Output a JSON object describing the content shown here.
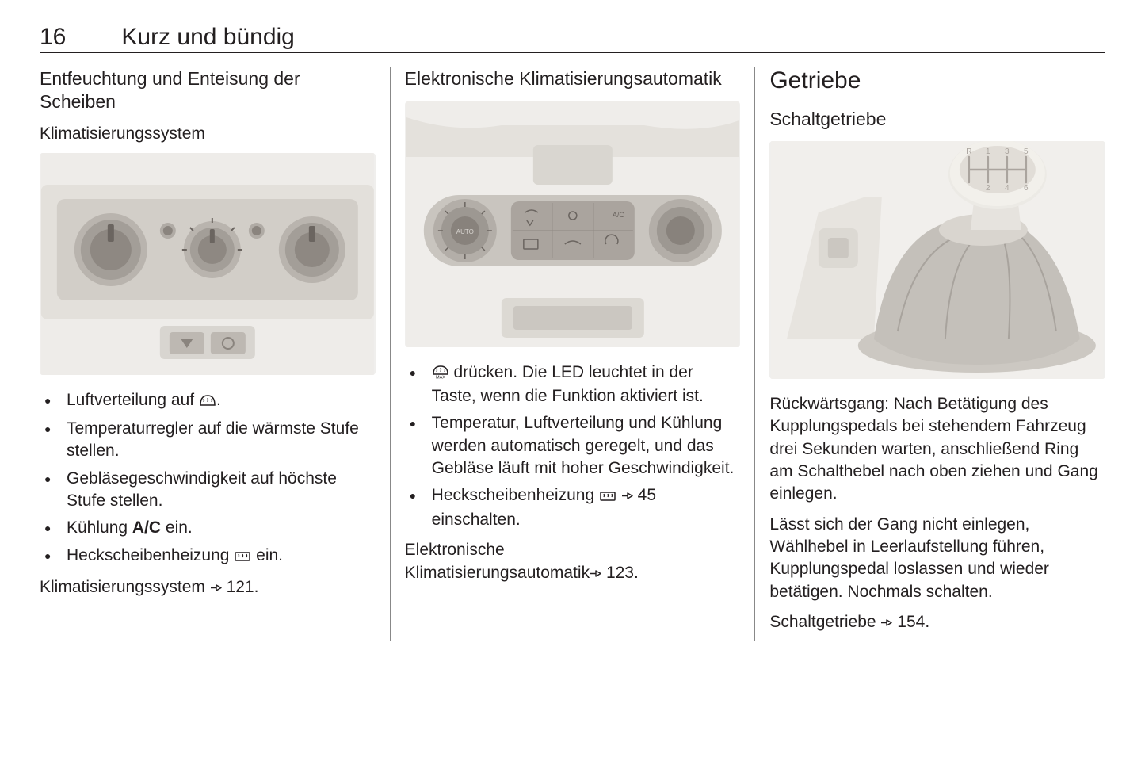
{
  "header": {
    "page_number": "16",
    "title": "Kurz und bündig"
  },
  "col1": {
    "heading": "Entfeuchtung und Enteisung der Scheiben",
    "subheading": "Klimatisierungssystem",
    "bullets": [
      "Luftverteilung auf ",
      "Temperaturregler auf die wärm­ste Stufe stellen.",
      "Gebläsegeschwindigkeit auf höchste Stufe stellen.",
      "Kühlung A/C ein.",
      "Heckscheibenheizung "
    ],
    "bullet1_suffix": ".",
    "bullet5_suffix": " ein.",
    "footer_text": "Klimatisierungssystem ",
    "footer_ref": "121."
  },
  "col2": {
    "heading": "Elektronische Klimatisierungsautomatik",
    "bullet1_pre": "",
    "bullet1_post": " drücken. Die LED leuchtet in der Taste, wenn die Funktion aktiviert ist.",
    "bullet2": "Temperatur, Luftverteilung und Kühlung werden automatisch geregelt, und das Gebläse läuft mit hoher Geschwindigkeit.",
    "bullet3_pre": "Heckscheibenheizung ",
    "bullet3_ref": "45",
    "bullet3_post": " einschalten.",
    "footer_text1": "Elektronische",
    "footer_text2": "Klimatisierungsautomatik",
    "footer_ref": "123."
  },
  "col3": {
    "heading": "Getriebe",
    "subheading": "Schaltgetriebe",
    "para1": "Rückwärtsgang: Nach Betätigung des Kupplungspedals bei stehendem Fahrzeug drei Sekunden warten, anschließend Ring am Schalthebel nach oben ziehen und Gang einle­gen.",
    "para2": "Lässt sich der Gang nicht einlegen, Wählhebel in Leerlaufstellung führen, Kupplungspedal loslassen und wieder betätigen. Nochmals schalten.",
    "footer_text": "Schaltgetriebe ",
    "footer_ref": "154."
  },
  "colors": {
    "text": "#231f20",
    "rule": "#888888",
    "illus_bg": "#f0efed",
    "dial_body": "#a8a39f",
    "dial_dark": "#8b8682",
    "dial_outline": "#6b6560",
    "panel_shadow": "#d8d5d0",
    "shift_knob": "#e8e6e2",
    "shift_boot": "#c5c1bc"
  }
}
